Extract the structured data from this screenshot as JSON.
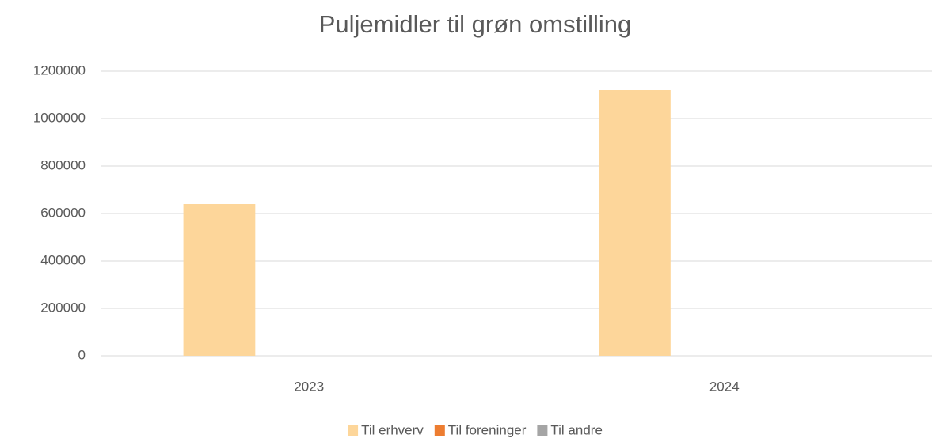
{
  "chart_data": {
    "type": "bar",
    "title": "Puljemidler til grøn omstilling",
    "categories": [
      "2023",
      "2024"
    ],
    "series": [
      {
        "name": "Til erhverv",
        "color": "#fdd69a",
        "values": [
          640000,
          1120000
        ]
      },
      {
        "name": "Til foreninger",
        "color": "#ed7d31",
        "values": [
          0,
          0
        ]
      },
      {
        "name": "Til andre",
        "color": "#a5a5a5",
        "values": [
          0,
          0
        ]
      }
    ],
    "ylim": [
      0,
      1200000
    ],
    "yticks": [
      0,
      200000,
      400000,
      600000,
      800000,
      1000000,
      1200000
    ],
    "grid": true,
    "legend": "bottom"
  }
}
